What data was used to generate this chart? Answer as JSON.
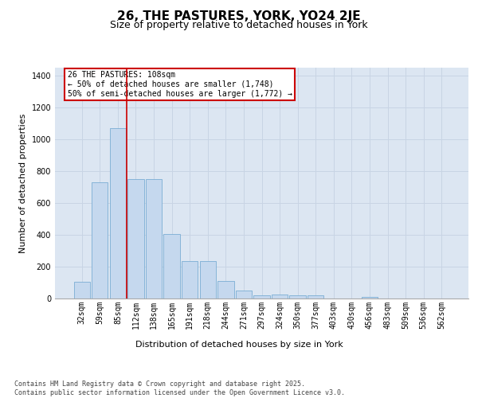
{
  "title": "26, THE PASTURES, YORK, YO24 2JE",
  "subtitle": "Size of property relative to detached houses in York",
  "xlabel": "Distribution of detached houses by size in York",
  "ylabel": "Number of detached properties",
  "categories": [
    "32sqm",
    "59sqm",
    "85sqm",
    "112sqm",
    "138sqm",
    "165sqm",
    "191sqm",
    "218sqm",
    "244sqm",
    "271sqm",
    "297sqm",
    "324sqm",
    "350sqm",
    "377sqm",
    "403sqm",
    "430sqm",
    "456sqm",
    "483sqm",
    "509sqm",
    "536sqm",
    "562sqm"
  ],
  "values": [
    105,
    730,
    1070,
    750,
    750,
    405,
    235,
    235,
    110,
    50,
    20,
    25,
    20,
    20,
    0,
    0,
    10,
    0,
    0,
    0,
    0
  ],
  "bar_color": "#c5d8ee",
  "bar_edge_color": "#7aadd4",
  "grid_color": "#c8d4e4",
  "background_color": "#dce6f2",
  "vline_color": "#cc0000",
  "annotation_text": "26 THE PASTURES: 108sqm\n← 50% of detached houses are smaller (1,748)\n50% of semi-detached houses are larger (1,772) →",
  "annotation_box_edge_color": "#cc0000",
  "ylim": [
    0,
    1450
  ],
  "yticks": [
    0,
    200,
    400,
    600,
    800,
    1000,
    1200,
    1400
  ],
  "footer": "Contains HM Land Registry data © Crown copyright and database right 2025.\nContains public sector information licensed under the Open Government Licence v3.0.",
  "title_fontsize": 11,
  "subtitle_fontsize": 9,
  "axis_label_fontsize": 8,
  "tick_fontsize": 7,
  "footer_fontsize": 6,
  "vline_bar_index": 3
}
